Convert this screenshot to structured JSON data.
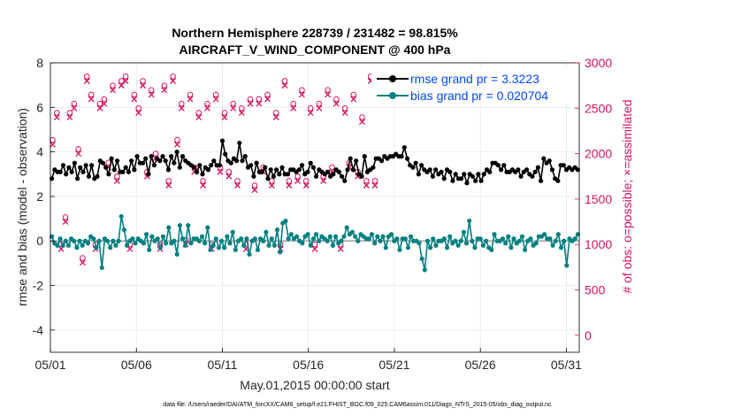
{
  "chart_data": {
    "type": "line",
    "title_line1": "Northern Hemisphere 228739 / 231482 = 98.815%",
    "title_line2": "AIRCRAFT_V_WIND_COMPONENT @ 400 hPa",
    "xlabel": "May.01,2015 00:00:00 start",
    "ylabel_left": "rmse and bias (model - observation)",
    "ylabel_right": "# of obs: o=possible; ×=assimilated",
    "x_ticks": [
      "05/01",
      "05/06",
      "05/11",
      "05/16",
      "05/21",
      "05/26",
      "05/31"
    ],
    "x_tick_days": [
      0,
      5,
      10,
      15,
      20,
      25,
      30
    ],
    "xlim": [
      0,
      30.75
    ],
    "ylim_left": [
      -5,
      8
    ],
    "yticks_left": [
      -4,
      -2,
      0,
      2,
      4,
      6,
      8
    ],
    "ylim_right": [
      -187.5,
      3000
    ],
    "yticks_right": [
      0,
      500,
      1000,
      1500,
      2000,
      2500,
      3000
    ],
    "grid": true,
    "legend_position": "top-right",
    "footer": "data file: /Users/raeder/DAI/ATM_forcXX/CAM6_setup/f.e21.FHIST_BGC.f09_025.CAM6assim.011/Diags_NTrS_2015-05/obs_diag_output.nc",
    "colors": {
      "rmse": "#000000",
      "bias": "#008080",
      "obs": "#d6115f",
      "zero_line": "#b3b3b3",
      "legend_text": "#0047ff"
    },
    "series": [
      {
        "name": "rmse grand pr = 3.3223",
        "color": "#000000",
        "marker": "filled-circle",
        "values": [
          2.8,
          3.2,
          3.1,
          3.1,
          3.4,
          3.0,
          3.3,
          3.1,
          3.5,
          2.8,
          3.3,
          3.1,
          3.4,
          2.9,
          3.4,
          2.8,
          2.9,
          3.6,
          3.5,
          3.3,
          3.0,
          3.7,
          3.2,
          3.6,
          3.1,
          3.1,
          3.3,
          3.1,
          3.6,
          3.2,
          3.8,
          3.5,
          3.5,
          3.7,
          3.0,
          3.8,
          3.4,
          3.7,
          3.6,
          3.8,
          3.6,
          3.2,
          3.8,
          3.5,
          4.0,
          3.3,
          3.8,
          3.6,
          3.5,
          3.4,
          3.3,
          3.1,
          3.4,
          3.0,
          3.3,
          3.2,
          3.4,
          3.6,
          3.4,
          3.4,
          4.5,
          3.9,
          3.6,
          3.5,
          3.7,
          3.6,
          4.4,
          3.6,
          3.8,
          3.3,
          3.4,
          2.9,
          3.5,
          3.1,
          3.1,
          3.3,
          2.8,
          3.2,
          2.9,
          3.2,
          3.0,
          3.3,
          3.0,
          3.0,
          3.2,
          3.2,
          3.1,
          3.2,
          3.4,
          3.0,
          3.1,
          3.5,
          3.3,
          2.9,
          3.2,
          3.1,
          3.0,
          3.1,
          2.9,
          3.0,
          3.2,
          3.1,
          2.9,
          2.7,
          3.2,
          3.7,
          3.2,
          3.6,
          3.0,
          2.9,
          3.8,
          3.1,
          3.2,
          3.3,
          3.7,
          3.7,
          3.6,
          3.8,
          3.7,
          3.8,
          3.8,
          3.9,
          3.8,
          3.8,
          4.2,
          3.7,
          3.4,
          3.3,
          3.5,
          3.0,
          3.4,
          3.2,
          3.1,
          3.2,
          2.9,
          3.2,
          3.0,
          3.1,
          2.8,
          3.2,
          3.1,
          2.7,
          3.0,
          2.8,
          2.8,
          3.0,
          2.6,
          3.0,
          2.9,
          2.7,
          3.0,
          2.7,
          3.0,
          3.2,
          3.1,
          3.5,
          3.5,
          3.4,
          3.2,
          3.4,
          3.1,
          3.1,
          3.2,
          3.1,
          3.2,
          2.9,
          3.1,
          3.2,
          3.0,
          2.9,
          3.1,
          3.3,
          2.7,
          3.7,
          3.5,
          3.6,
          3.2,
          2.8,
          2.7,
          3.4,
          3.4,
          3.2,
          3.3,
          3.2,
          3.3,
          3.2
        ]
      },
      {
        "name": "bias grand pr = 0.020704",
        "color": "#008080",
        "marker": "filled-circle",
        "values": [
          0.2,
          -0.1,
          -0.2,
          0.1,
          -0.2,
          0.0,
          -0.2,
          0.1,
          0.0,
          -0.3,
          0.0,
          -0.2,
          0.0,
          -0.1,
          0.2,
          0.1,
          -0.3,
          0.0,
          -1.2,
          0.1,
          0.0,
          -0.3,
          0.0,
          -0.2,
          0.0,
          1.1,
          0.5,
          -0.2,
          0.0,
          0.1,
          -0.1,
          0.1,
          0.0,
          -0.1,
          0.3,
          -0.4,
          0.2,
          0.0,
          0.1,
          -0.3,
          0.2,
          -0.1,
          0.6,
          -0.1,
          0.0,
          -0.6,
          0.7,
          0.1,
          -0.2,
          0.7,
          -0.1,
          0.1,
          0.1,
          0.0,
          0.2,
          -0.1,
          0.6,
          -0.4,
          -0.2,
          0.1,
          -0.3,
          0.0,
          -0.3,
          0.2,
          -0.1,
          0.4,
          -0.4,
          0.0,
          0.1,
          -0.2,
          0.1,
          -0.6,
          0.0,
          0.1,
          -0.4,
          0.1,
          0.0,
          0.4,
          -0.2,
          0.1,
          -0.2,
          0.5,
          -0.5,
          0.8,
          0.9,
          0.1,
          0.3,
          0.1,
          0.2,
          0.0,
          -0.1,
          0.2,
          0.3,
          -0.2,
          0.1,
          0.3,
          0.0,
          0.2,
          0.1,
          0.0,
          0.2,
          -0.2,
          0.2,
          -0.1,
          0.0,
          0.2,
          0.6,
          0.3,
          0.4,
          0.2,
          0.0,
          0.3,
          0.2,
          0.1,
          0.1,
          0.3,
          -0.1,
          0.2,
          0.0,
          0.2,
          -0.3,
          0.2,
          0.3,
          0.0,
          0.1,
          -0.4,
          0.1,
          0.1,
          -0.3,
          0.2,
          0.0,
          0.0,
          -0.1,
          -0.8,
          -1.3,
          0.0,
          -0.3,
          0.1,
          -0.2,
          0.0,
          0.0,
          0.1,
          -0.3,
          0.2,
          -0.1,
          0.0,
          -0.2,
          0.0,
          0.4,
          -0.1,
          0.9,
          0.0,
          -0.3,
          0.1,
          0.1,
          -0.2,
          0.0,
          -0.3,
          -0.4,
          0.3,
          0.0,
          0.0,
          0.1,
          -0.1,
          0.2,
          -0.3,
          0.1,
          -0.1,
          0.0,
          0.2,
          -0.4,
          0.0,
          0.1,
          -0.2,
          -0.1,
          0.2,
          0.2,
          0.3,
          0.1,
          0.1,
          -0.2,
          0.0,
          0.3,
          -0.3,
          0.0,
          -1.1,
          0.1,
          0.0,
          0.1,
          0.3
        ]
      },
      {
        "name": "# of obs possible",
        "axis": "right",
        "marker": "circle",
        "values": [
          2150,
          2450,
          1000,
          1300,
          2450,
          2550,
          2050,
          850,
          2850,
          2650,
          1000,
          2550,
          2600,
          1900,
          2750,
          1750,
          2800,
          2850,
          1000,
          2650,
          2500,
          2800,
          1800,
          2700,
          2000,
          1000,
          2750,
          1700,
          2850,
          2150,
          2550,
          1050,
          2650,
          1850,
          2450,
          1700,
          2550,
          1000,
          2650,
          1850,
          2450,
          1800,
          2550,
          1700,
          2500,
          1000,
          2600,
          1650,
          2600,
          1850,
          2650,
          1700,
          2450,
          1000,
          2800,
          1700,
          2550,
          1750,
          2700,
          1700,
          2500,
          1000,
          2550,
          1750,
          2700,
          1850,
          2600,
          1000,
          2500,
          1900,
          2650,
          1800,
          2400,
          1700,
          2850,
          1700
        ]
      },
      {
        "name": "# of obs assimilated",
        "axis": "right",
        "marker": "x",
        "values": [
          2100,
          2400,
          950,
          1250,
          2400,
          2500,
          2000,
          800,
          2800,
          2600,
          950,
          2500,
          2550,
          1850,
          2700,
          1700,
          2750,
          2800,
          950,
          2600,
          2450,
          2750,
          1750,
          2650,
          1950,
          950,
          2700,
          1650,
          2800,
          2100,
          2500,
          1000,
          2600,
          1800,
          2400,
          1650,
          2500,
          950,
          2600,
          1800,
          2400,
          1750,
          2500,
          1650,
          2450,
          950,
          2550,
          1600,
          2550,
          1800,
          2600,
          1650,
          2400,
          950,
          2750,
          1650,
          2500,
          1700,
          2650,
          1650,
          2450,
          950,
          2500,
          1700,
          2650,
          1800,
          2550,
          950,
          2450,
          1850,
          2600,
          1750,
          2350,
          1650,
          2800,
          1650
        ]
      }
    ]
  }
}
